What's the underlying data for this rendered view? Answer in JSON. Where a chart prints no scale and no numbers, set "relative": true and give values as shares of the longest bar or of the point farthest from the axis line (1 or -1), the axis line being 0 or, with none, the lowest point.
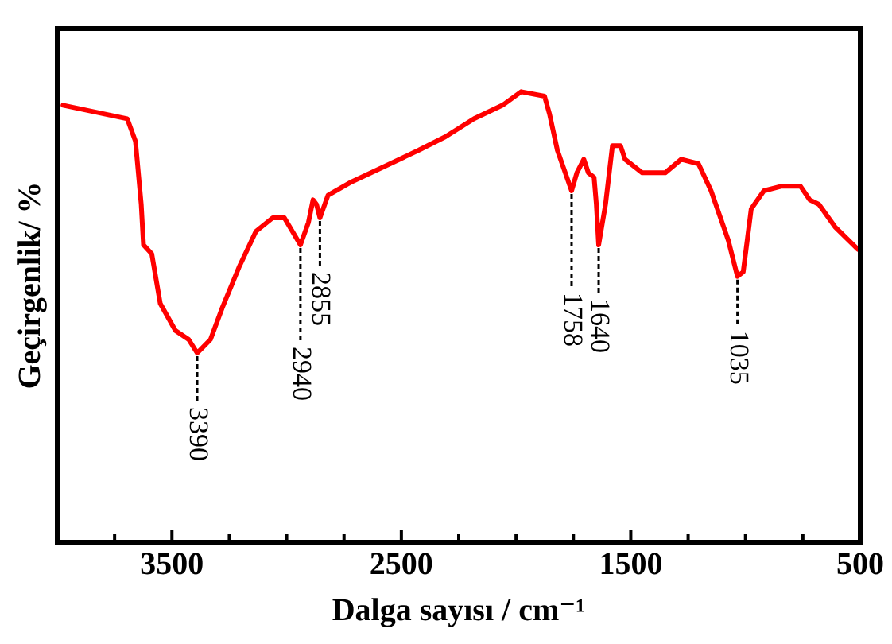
{
  "chart_data": {
    "type": "line",
    "relative": true,
    "xlabel": "Dalga sayısı / cm⁻¹",
    "ylabel": "Geçirgenlik/ %",
    "xlim": [
      4000,
      500
    ],
    "xticks": [
      {
        "value": 3750,
        "label": null
      },
      3500,
      {
        "value": 3250,
        "label": null
      },
      {
        "value": 3000,
        "label": null
      },
      {
        "value": 2750,
        "label": null
      },
      2500,
      {
        "value": 2250,
        "label": null
      },
      {
        "value": 2000,
        "label": null
      },
      {
        "value": 1750,
        "label": null
      },
      1500,
      {
        "value": 1250,
        "label": null
      },
      {
        "value": 1000,
        "label": null
      },
      {
        "value": 750,
        "label": null
      },
      500
    ],
    "grid": false,
    "legend": false,
    "marker": "none",
    "line_style": "solid",
    "series": [
      {
        "color": "#ff0000",
        "x": [
          3975,
          3695,
          3659,
          3634,
          3624,
          3588,
          3551,
          3485,
          3427,
          3390,
          3332,
          3281,
          3208,
          3134,
          3061,
          3010,
          2940,
          2905,
          2885,
          2870,
          2855,
          2820,
          2717,
          2549,
          2425,
          2308,
          2183,
          2059,
          1978,
          1876,
          1854,
          1820,
          1758,
          1735,
          1705,
          1685,
          1660,
          1650,
          1640,
          1610,
          1580,
          1545,
          1525,
          1450,
          1350,
          1280,
          1205,
          1150,
          1075,
          1035,
          1010,
          975,
          920,
          845,
          760,
          720,
          680,
          610,
          510
        ],
        "values": [
          0.97,
          0.94,
          0.89,
          0.75,
          0.66,
          0.64,
          0.53,
          0.47,
          0.45,
          0.42,
          0.45,
          0.52,
          0.61,
          0.69,
          0.72,
          0.72,
          0.66,
          0.71,
          0.76,
          0.75,
          0.72,
          0.77,
          0.8,
          0.84,
          0.87,
          0.9,
          0.94,
          0.97,
          1,
          0.99,
          0.95,
          0.87,
          0.78,
          0.82,
          0.85,
          0.82,
          0.81,
          0.75,
          0.66,
          0.75,
          0.88,
          0.88,
          0.85,
          0.82,
          0.82,
          0.85,
          0.84,
          0.78,
          0.67,
          0.59,
          0.6,
          0.74,
          0.78,
          0.79,
          0.79,
          0.76,
          0.75,
          0.7,
          0.65
        ]
      }
    ],
    "annotations": [
      {
        "text": "3390",
        "x": 3390,
        "y": 0.42
      },
      {
        "text": "2940",
        "x": 2940,
        "y": 0.66
      },
      {
        "text": "2855",
        "x": 2855,
        "y": 0.72
      },
      {
        "text": "1758",
        "x": 1758,
        "y": 0.78
      },
      {
        "text": "1640",
        "x": 1640,
        "y": 0.66
      },
      {
        "text": "1035",
        "x": 1035,
        "y": 0.59
      }
    ]
  }
}
